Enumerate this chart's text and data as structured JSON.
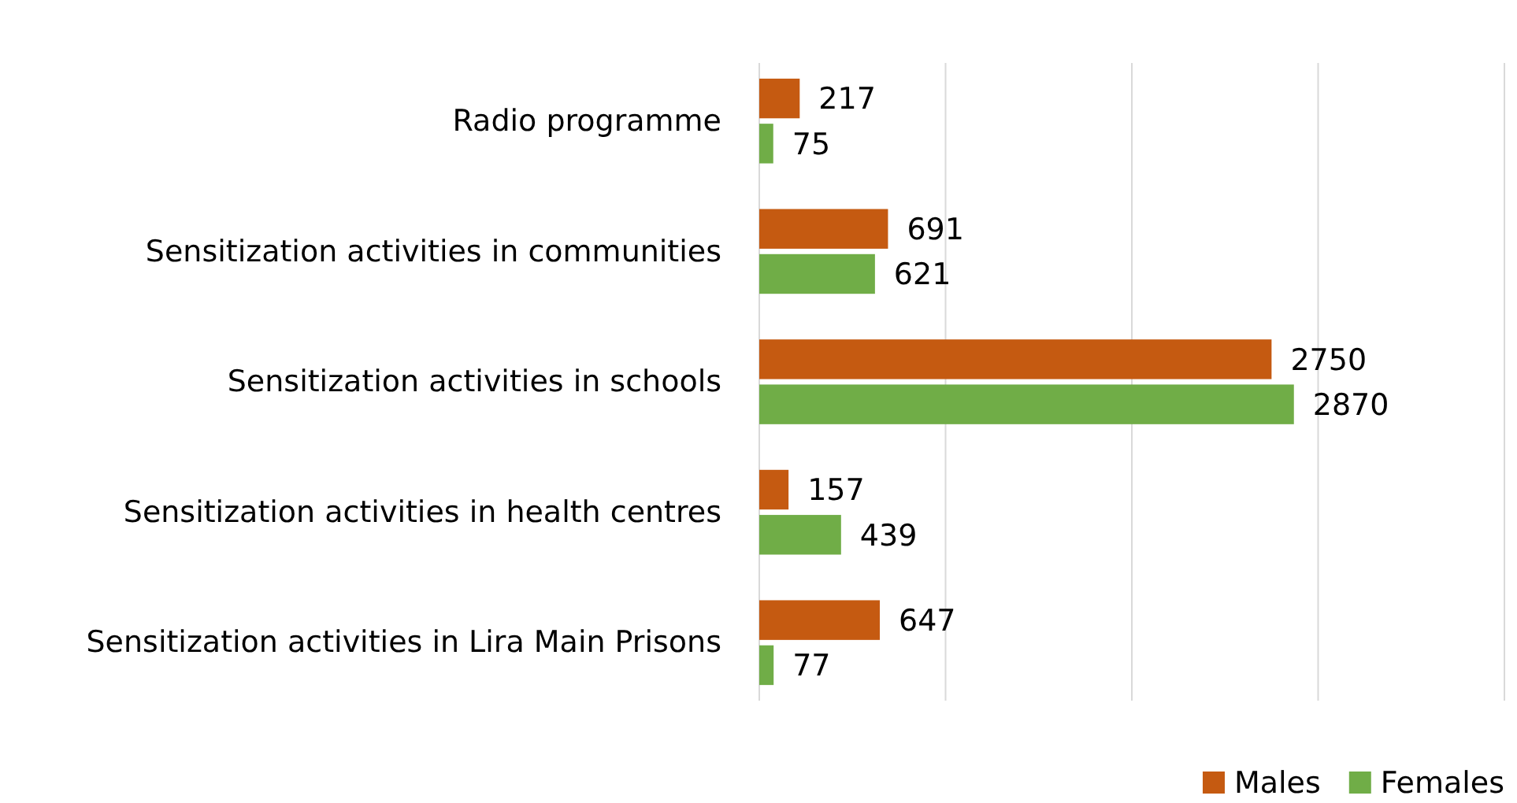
{
  "chart_data": {
    "type": "bar",
    "orientation": "horizontal",
    "categories": [
      "Radio programme",
      "Sensitization activities in communities",
      "Sensitization activities in schools",
      "Sensitization activities in health centres",
      "Sensitization activities in Lira Main Prisons"
    ],
    "series": [
      {
        "name": "Males",
        "color": "#c55a11",
        "values": [
          217,
          691,
          2750,
          157,
          647
        ]
      },
      {
        "name": "Females",
        "color": "#70ad47",
        "values": [
          75,
          621,
          2870,
          439,
          77
        ]
      }
    ],
    "xlim": [
      0,
      4000
    ],
    "xticks": [
      {
        "value": 0,
        "label": null
      },
      {
        "value": 1000,
        "label": null
      },
      {
        "value": 2000,
        "label": null
      },
      {
        "value": 3000,
        "label": null
      },
      {
        "value": 4000,
        "label": null
      }
    ],
    "tick_labels": "y",
    "grid": "x",
    "data_labels": true,
    "legend": "bottom right"
  }
}
